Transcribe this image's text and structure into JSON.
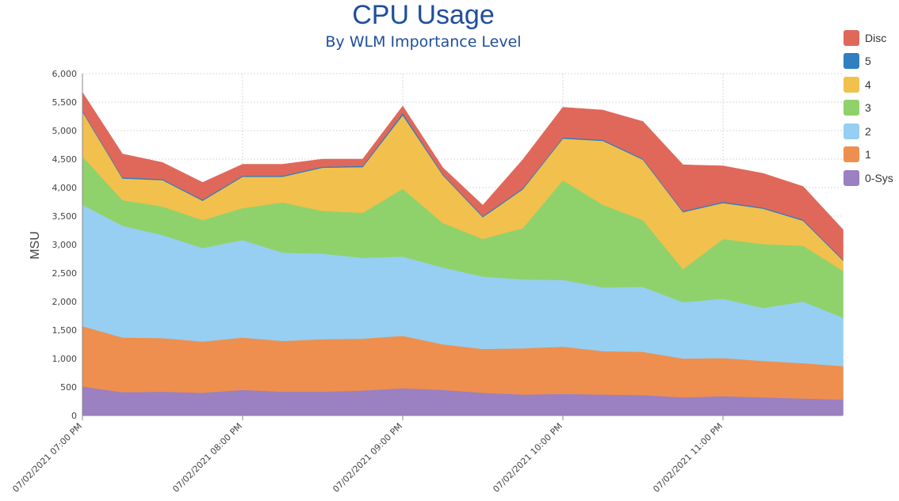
{
  "chart_data": {
    "type": "area",
    "stacked": true,
    "title": "CPU Usage",
    "subtitle": "By WLM Importance Level",
    "ylabel": "MSU",
    "xlabel": "",
    "ylim": [
      0,
      6000
    ],
    "y_ticks": [
      "0",
      "500",
      "1,000",
      "1,500",
      "2,000",
      "2,500",
      "3,000",
      "3,500",
      "4,000",
      "4,500",
      "5,000",
      "5,500",
      "6,000"
    ],
    "x_tick_labels": [
      "07/02/2021 07:00 PM",
      "07/02/2021 08:00 PM",
      "07/02/2021 09:00 PM",
      "07/02/2021 10:00 PM",
      "07/02/2021 11:00 PM"
    ],
    "x_interval_minutes": 15,
    "grid": true,
    "legend_position": "right",
    "x": [
      "07:00 PM",
      "07:15 PM",
      "07:30 PM",
      "07:45 PM",
      "08:00 PM",
      "08:15 PM",
      "08:30 PM",
      "08:45 PM",
      "09:00 PM",
      "09:15 PM",
      "09:30 PM",
      "09:45 PM",
      "10:00 PM",
      "10:15 PM",
      "10:30 PM",
      "10:45 PM",
      "11:00 PM",
      "11:15 PM",
      "11:30 PM",
      "11:45 PM"
    ],
    "series": [
      {
        "name": "0-Sys",
        "color": "#9b80c2",
        "values": [
          510,
          410,
          420,
          400,
          450,
          420,
          420,
          440,
          480,
          450,
          400,
          370,
          380,
          370,
          360,
          320,
          340,
          320,
          300,
          280
        ]
      },
      {
        "name": "1",
        "color": "#ee8f4f",
        "values": [
          1060,
          960,
          940,
          900,
          920,
          890,
          920,
          910,
          920,
          800,
          770,
          810,
          830,
          760,
          760,
          680,
          670,
          640,
          620,
          590
        ]
      },
      {
        "name": "2",
        "color": "#96cff2",
        "values": [
          2130,
          1960,
          1810,
          1640,
          1710,
          1550,
          1500,
          1420,
          1390,
          1350,
          1270,
          1210,
          1170,
          1120,
          1140,
          990,
          1040,
          930,
          1080,
          850
        ]
      },
      {
        "name": "3",
        "color": "#8fd26b",
        "values": [
          850,
          450,
          500,
          490,
          560,
          880,
          750,
          790,
          1190,
          780,
          660,
          900,
          1750,
          1450,
          1170,
          580,
          1050,
          1120,
          980,
          820
        ]
      },
      {
        "name": "4",
        "color": "#f2c04d",
        "values": [
          780,
          380,
          460,
          340,
          550,
          450,
          760,
          800,
          1290,
          840,
          380,
          680,
          730,
          1120,
          1060,
          1000,
          630,
          620,
          440,
          180
        ]
      },
      {
        "name": "5",
        "color": "#2f7fc1",
        "values": [
          20,
          20,
          20,
          20,
          20,
          20,
          20,
          20,
          40,
          20,
          20,
          20,
          20,
          20,
          20,
          20,
          20,
          20,
          20,
          20
        ]
      },
      {
        "name": "Disc",
        "color": "#e0685a",
        "values": [
          320,
          410,
          290,
          300,
          200,
          200,
          130,
          120,
          120,
          110,
          190,
          500,
          530,
          520,
          650,
          810,
          630,
          600,
          580,
          520
        ]
      }
    ]
  }
}
